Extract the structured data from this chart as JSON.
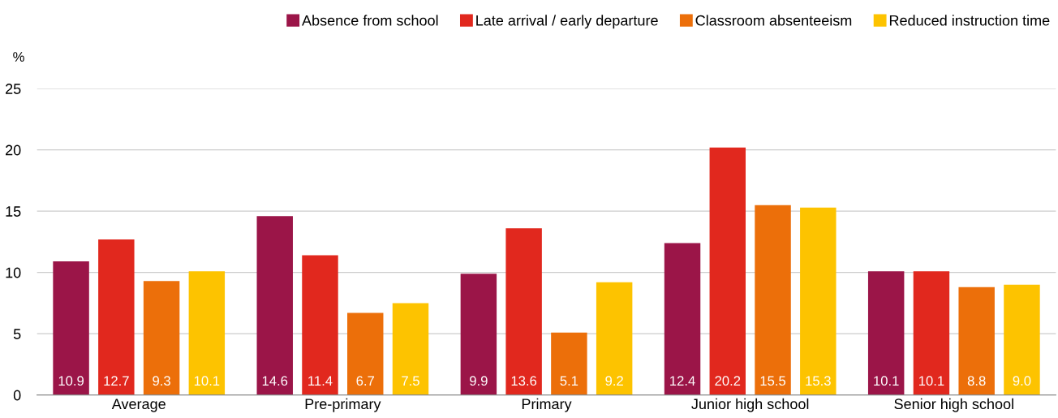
{
  "chart_data": {
    "type": "bar",
    "ylabel": "%",
    "categories": [
      "Average",
      "Pre-primary",
      "Primary",
      "Junior high school",
      "Senior high school"
    ],
    "series": [
      {
        "name": "Absence from school",
        "color": "#9b1548",
        "values": [
          10.9,
          14.6,
          9.9,
          12.4,
          10.1
        ],
        "value_labels": [
          "10.9",
          "14.6",
          "9.9",
          "12.4",
          "10.1"
        ]
      },
      {
        "name": "Late arrival / early departure",
        "color": "#e1281e",
        "values": [
          12.7,
          11.4,
          13.6,
          20.2,
          10.1
        ],
        "value_labels": [
          "12.7",
          "11.4",
          "13.6",
          "20.2",
          "10.1"
        ]
      },
      {
        "name": "Classroom absenteeism",
        "color": "#ec6f0a",
        "values": [
          9.3,
          6.7,
          5.1,
          15.5,
          8.8
        ],
        "value_labels": [
          "9.3",
          "6.7",
          "5.1",
          "15.5",
          "8.8"
        ]
      },
      {
        "name": "Reduced instruction time",
        "color": "#fdc300",
        "values": [
          10.1,
          7.5,
          9.2,
          15.3,
          9.0
        ],
        "value_labels": [
          "10.1",
          "7.5",
          "9.2",
          "15.3",
          "9.0"
        ]
      }
    ],
    "ylim": [
      0,
      25
    ],
    "yticks": [
      0,
      5,
      10,
      15,
      20,
      25
    ],
    "grid": "y",
    "legend": "top right"
  }
}
